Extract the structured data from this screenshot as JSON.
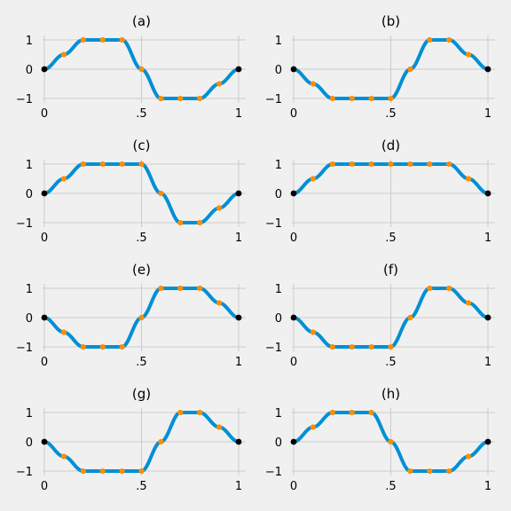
{
  "figure": {
    "background": "#f0f0f0",
    "grid_color": "#cbcbcb"
  },
  "style": {
    "curve_color": "#008fd5",
    "sample_color": "#fc8d05",
    "endpoint_color": "#000000"
  },
  "axes": {
    "xlim": [
      0,
      1
    ],
    "ylim": [
      -1.15,
      1.15
    ],
    "xticks": [
      0,
      0.5,
      1
    ],
    "xtick_labels": [
      "0",
      ".5",
      "1"
    ],
    "yticks": [
      1,
      0,
      -1
    ],
    "ytick_labels": [
      "1",
      "0",
      "−1"
    ],
    "grid": true
  },
  "chart_data": [
    {
      "type": "line",
      "title": "(a)",
      "x": [
        0,
        0.1,
        0.2,
        0.3,
        0.4,
        0.5,
        0.6,
        0.7,
        0.8,
        0.9,
        1
      ],
      "y": [
        0,
        0.5,
        1,
        1,
        1,
        0,
        -1,
        -1,
        -1,
        -0.5,
        0
      ]
    },
    {
      "type": "line",
      "title": "(b)",
      "x": [
        0,
        0.1,
        0.2,
        0.3,
        0.4,
        0.5,
        0.6,
        0.7,
        0.8,
        0.9,
        1
      ],
      "y": [
        0,
        -0.5,
        -1,
        -1,
        -1,
        -1,
        0,
        1,
        1,
        0.5,
        0
      ]
    },
    {
      "type": "line",
      "title": "(c)",
      "x": [
        0,
        0.1,
        0.2,
        0.3,
        0.4,
        0.5,
        0.6,
        0.7,
        0.8,
        0.9,
        1
      ],
      "y": [
        0,
        0.5,
        1,
        1,
        1,
        1,
        0,
        -1,
        -1,
        -0.5,
        0
      ]
    },
    {
      "type": "line",
      "title": "(d)",
      "x": [
        0,
        0.1,
        0.2,
        0.3,
        0.4,
        0.5,
        0.6,
        0.7,
        0.8,
        0.9,
        1
      ],
      "y": [
        0,
        0.5,
        1,
        1,
        1,
        1,
        1,
        1,
        1,
        0.5,
        0
      ]
    },
    {
      "type": "line",
      "title": "(e)",
      "x": [
        0,
        0.1,
        0.2,
        0.3,
        0.4,
        0.5,
        0.6,
        0.7,
        0.8,
        0.9,
        1
      ],
      "y": [
        0,
        -0.5,
        -1,
        -1,
        -1,
        0,
        1,
        1,
        1,
        0.5,
        0
      ]
    },
    {
      "type": "line",
      "title": "(f)",
      "x": [
        0,
        0.1,
        0.2,
        0.3,
        0.4,
        0.5,
        0.6,
        0.7,
        0.8,
        0.9,
        1
      ],
      "y": [
        0,
        -0.5,
        -1,
        -1,
        -1,
        -1,
        0,
        1,
        1,
        0.5,
        0
      ]
    },
    {
      "type": "line",
      "title": "(g)",
      "x": [
        0,
        0.1,
        0.2,
        0.3,
        0.4,
        0.5,
        0.6,
        0.7,
        0.8,
        0.9,
        1
      ],
      "y": [
        0,
        -0.5,
        -1,
        -1,
        -1,
        -1,
        0,
        1,
        1,
        0.5,
        0
      ]
    },
    {
      "type": "line",
      "title": "(h)",
      "x": [
        0,
        0.1,
        0.2,
        0.3,
        0.4,
        0.5,
        0.6,
        0.7,
        0.8,
        0.9,
        1
      ],
      "y": [
        0,
        0.5,
        1,
        1,
        1,
        0,
        -1,
        -1,
        -1,
        -0.5,
        0
      ]
    }
  ]
}
